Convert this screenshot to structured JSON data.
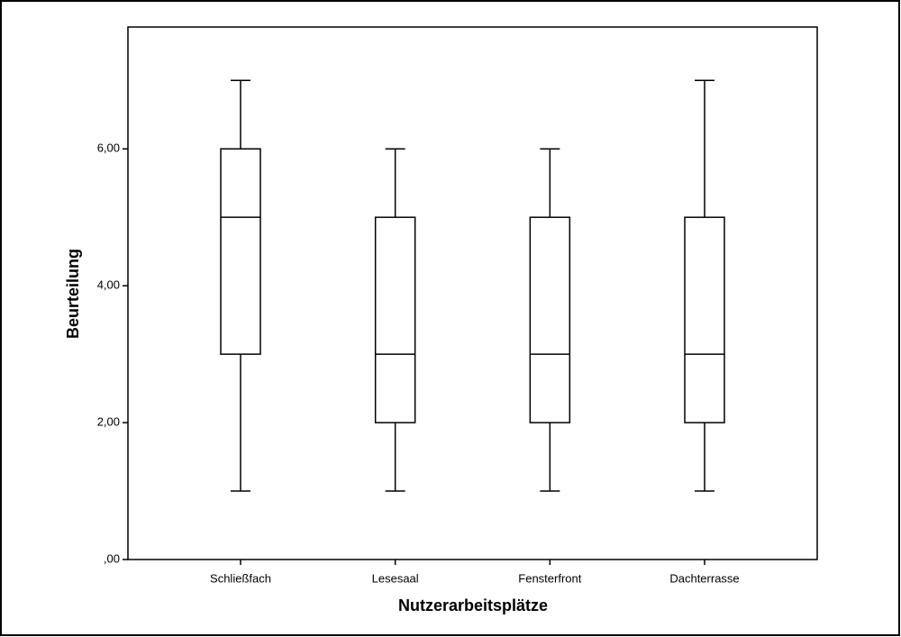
{
  "chart_data": {
    "type": "box",
    "x_label": "Nutzerarbeitsplätze",
    "y_label": "Beurteilung",
    "categories": [
      "Schließfach",
      "Lesesaal",
      "Fensterfront",
      "Dachterrasse"
    ],
    "min": [
      1,
      1,
      1,
      1
    ],
    "q1": [
      3,
      2,
      2,
      2
    ],
    "median": [
      5,
      3,
      3,
      3
    ],
    "q3": [
      6,
      5,
      5,
      5
    ],
    "max": [
      7,
      6,
      6,
      7
    ],
    "ylim": [
      0,
      7.78
    ],
    "yticks": [
      {
        "value": 0,
        "label": ",00"
      },
      {
        "value": 2,
        "label": "2,00"
      },
      {
        "value": 4,
        "label": "4,00"
      },
      {
        "value": 6,
        "label": "6,00"
      }
    ],
    "color": "#ffffff"
  }
}
